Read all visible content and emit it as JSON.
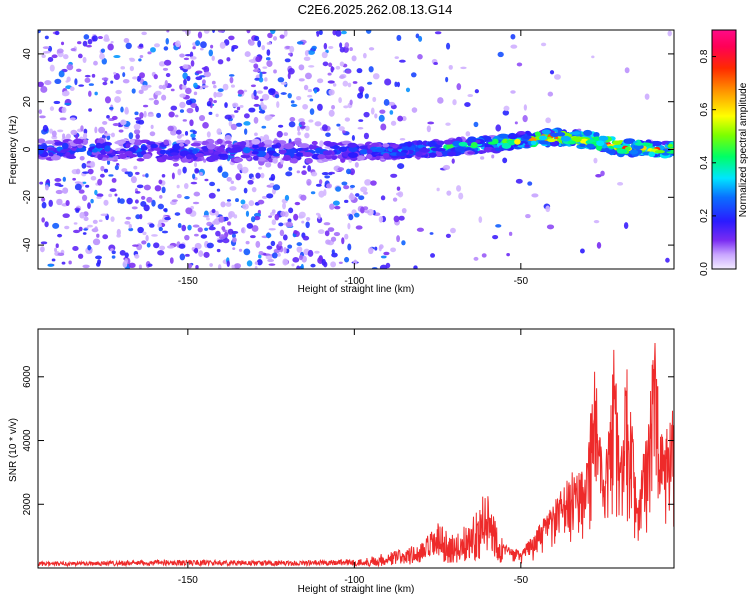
{
  "title": "C2E6.2025.262.08.13.G14",
  "chart_data": [
    {
      "type": "heatmap",
      "title": "C2E6.2025.262.08.13.G14",
      "xlabel": "Height of straight line (km)",
      "ylabel": "Frequency (Hz)",
      "xlim": [
        -195,
        -4
      ],
      "ylim": [
        -50,
        50
      ],
      "xticks": [
        -150,
        -100,
        -50
      ],
      "yticks": [
        -40,
        -20,
        0,
        20,
        40
      ],
      "colorbar": {
        "label": "Normalized spectral amplitude",
        "range": [
          0.0,
          0.9
        ],
        "ticks": [
          0.0,
          0.2,
          0.4,
          0.6,
          0.8
        ]
      },
      "ridge": {
        "x": [
          -195,
          -100,
          -80,
          -60,
          -50,
          -40,
          -30,
          -20,
          -10,
          -4
        ],
        "frequency": [
          0,
          -1,
          0,
          2,
          4,
          5,
          4,
          1,
          0,
          0
        ],
        "amplitude": [
          0.3,
          0.3,
          0.45,
          0.55,
          0.7,
          0.85,
          0.9,
          0.85,
          0.8,
          0.75
        ]
      }
    },
    {
      "type": "line",
      "xlabel": "Height of straight line (km)",
      "ylabel": "SNR (10 * v/v)",
      "xlim": [
        -195,
        -4
      ],
      "ylim": [
        0,
        7500
      ],
      "xticks": [
        -150,
        -100,
        -50
      ],
      "yticks": [
        2000,
        4000,
        6000
      ],
      "color": "#ee2a2a",
      "series": [
        {
          "name": "SNR",
          "x": [
            -195,
            -170,
            -150,
            -120,
            -100,
            -90,
            -80,
            -75,
            -70,
            -65,
            -60,
            -55,
            -50,
            -45,
            -40,
            -35,
            -30,
            -28,
            -25,
            -22,
            -20,
            -18,
            -15,
            -12,
            -10,
            -8,
            -6,
            -4
          ],
          "values": [
            150,
            180,
            200,
            170,
            220,
            450,
            700,
            1300,
            900,
            1400,
            2300,
            700,
            500,
            1200,
            2000,
            2800,
            3500,
            6500,
            2500,
            6800,
            3200,
            6700,
            1800,
            4500,
            7300,
            4000,
            4200,
            5000
          ]
        }
      ]
    }
  ]
}
